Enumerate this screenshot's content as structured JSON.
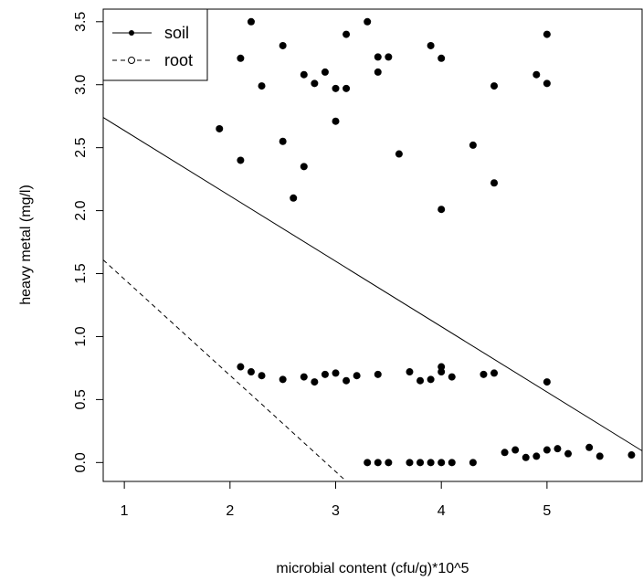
{
  "chart_data": {
    "type": "scatter",
    "title": "",
    "xlabel": "microbial content (cfu/g)*10^5",
    "ylabel": "heavy metal (mg/l)",
    "xlim": [
      0.8,
      5.9
    ],
    "ylim": [
      -0.15,
      3.6
    ],
    "x_ticks": [
      1,
      2,
      3,
      4,
      5
    ],
    "x_tick_labels": [
      "1",
      "2",
      "3",
      "4",
      "5"
    ],
    "y_ticks": [
      0.0,
      0.5,
      1.0,
      1.5,
      2.0,
      2.5,
      3.0,
      3.5
    ],
    "y_tick_labels": [
      "0.0",
      "0.5",
      "1.0",
      "1.5",
      "2.0",
      "2.5",
      "3.0",
      "3.5"
    ],
    "grid": false,
    "legend_position": "top-left",
    "series": [
      {
        "name": "soil",
        "marker": "filled-circle",
        "points": [
          [
            1.9,
            2.65
          ],
          [
            2.1,
            3.21
          ],
          [
            2.1,
            2.4
          ],
          [
            2.2,
            3.5
          ],
          [
            2.3,
            2.99
          ],
          [
            2.5,
            3.31
          ],
          [
            2.5,
            2.55
          ],
          [
            2.6,
            2.1
          ],
          [
            2.7,
            3.08
          ],
          [
            2.7,
            2.35
          ],
          [
            2.8,
            3.01
          ],
          [
            2.9,
            3.1
          ],
          [
            3.0,
            2.97
          ],
          [
            3.0,
            2.71
          ],
          [
            3.1,
            3.4
          ],
          [
            3.1,
            2.97
          ],
          [
            3.3,
            3.5
          ],
          [
            3.4,
            3.22
          ],
          [
            3.4,
            3.1
          ],
          [
            3.5,
            3.22
          ],
          [
            3.6,
            2.45
          ],
          [
            3.9,
            3.31
          ],
          [
            4.0,
            3.21
          ],
          [
            4.0,
            2.01
          ],
          [
            4.3,
            2.52
          ],
          [
            4.5,
            2.99
          ],
          [
            4.5,
            2.22
          ],
          [
            4.9,
            3.08
          ],
          [
            5.0,
            3.4
          ],
          [
            5.0,
            3.01
          ],
          [
            2.1,
            0.76
          ],
          [
            2.2,
            0.72
          ],
          [
            2.3,
            0.69
          ],
          [
            2.5,
            0.66
          ],
          [
            2.7,
            0.68
          ],
          [
            2.8,
            0.64
          ],
          [
            2.9,
            0.7
          ],
          [
            3.0,
            0.71
          ],
          [
            3.1,
            0.65
          ],
          [
            3.2,
            0.69
          ],
          [
            3.4,
            0.7
          ],
          [
            3.7,
            0.72
          ],
          [
            3.8,
            0.65
          ],
          [
            3.9,
            0.66
          ],
          [
            4.0,
            0.76
          ],
          [
            4.0,
            0.72
          ],
          [
            4.1,
            0.68
          ],
          [
            4.4,
            0.7
          ],
          [
            4.5,
            0.71
          ],
          [
            5.0,
            0.64
          ],
          [
            3.3,
            0.0
          ],
          [
            3.4,
            0.0
          ],
          [
            3.5,
            0.0
          ],
          [
            3.7,
            0.0
          ],
          [
            3.8,
            0.0
          ],
          [
            3.9,
            0.0
          ],
          [
            4.0,
            0.0
          ],
          [
            4.1,
            0.0
          ],
          [
            4.3,
            0.0
          ],
          [
            4.6,
            0.08
          ],
          [
            4.7,
            0.1
          ],
          [
            4.8,
            0.04
          ],
          [
            4.9,
            0.05
          ],
          [
            5.0,
            0.1
          ],
          [
            5.1,
            0.11
          ],
          [
            5.2,
            0.07
          ],
          [
            5.4,
            0.12
          ],
          [
            5.5,
            0.05
          ],
          [
            5.8,
            0.06
          ]
        ]
      },
      {
        "name": "root",
        "marker": "open-circle",
        "points": []
      }
    ],
    "fit_lines": [
      {
        "series": "soil",
        "style": "solid",
        "intercept": 3.155,
        "slope": -0.519
      },
      {
        "series": "root",
        "style": "dashed",
        "intercept": 2.22,
        "slope": -0.764
      }
    ]
  }
}
